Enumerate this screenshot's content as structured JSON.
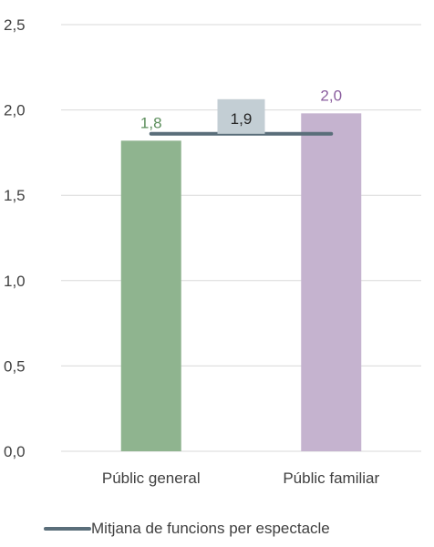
{
  "chart_data": {
    "type": "bar",
    "categories": [
      "Públic general",
      "Públic familiar"
    ],
    "values": [
      1.82,
      1.98
    ],
    "value_labels": [
      "1,8",
      "2,0"
    ],
    "colors": {
      "bars": [
        "#8fb48f",
        "#c5b3cf"
      ],
      "labels": [
        "#5d8f5d",
        "#8a5d9e"
      ],
      "average_line": "#5a6e7a",
      "average_label_bg": "#c3ced4",
      "grid": "#d9d9d9"
    },
    "ylim": [
      0,
      2.5
    ],
    "yticks": [
      0,
      0.5,
      1.0,
      1.5,
      2.0,
      2.5
    ],
    "ytick_labels": [
      "0,0",
      "0,5",
      "1,0",
      "1,5",
      "2,0",
      "2,5"
    ],
    "grid": true,
    "average": {
      "value": 1.86,
      "label": "1,9"
    },
    "legend": {
      "position": "bottom",
      "entries": [
        {
          "name": "Mitjana de funcions per espectacle",
          "type": "line"
        }
      ]
    }
  }
}
